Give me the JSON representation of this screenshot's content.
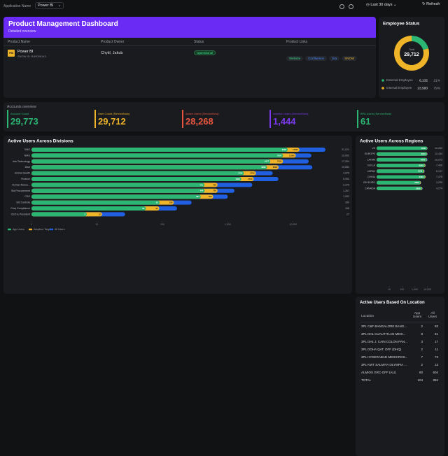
{
  "topbar": {
    "app_label": "Application Name",
    "app_value": "Power BI",
    "range": "Last 30 days",
    "refresh": "Refresh"
  },
  "header": {
    "title": "Product Management Dashboard",
    "subtitle": "Detailed overview"
  },
  "product_table": {
    "columns": [
      "Product Name",
      "Product Owner",
      "Status",
      "Product Links"
    ],
    "rows": [
      {
        "icon": "PBI",
        "name": "Power BI",
        "id": "SNOW ID: BA0006143",
        "owner": "Chytil, Jakub",
        "status": "Operational",
        "links": [
          "Website",
          "Confluence",
          "Jira",
          "SNOW"
        ]
      }
    ]
  },
  "accounts": {
    "title": "Accounts overview",
    "kpis": [
      {
        "label": "Account Count",
        "value": "29,773",
        "color": "#2bb673"
      },
      {
        "label": "User Count (ServiceNow)",
        "value": "29,712",
        "color": "#f0b429"
      },
      {
        "label": "Active Users (ServiceNow)",
        "value": "28,268",
        "color": "#e8553f"
      },
      {
        "label": "Inactive Users (ServiceNow)",
        "value": "1,444",
        "color": "#7c3aed"
      },
      {
        "label": "BPA Users (ServiceNow)",
        "value": "61",
        "color": "#2bb673"
      }
    ]
  },
  "location_table": {
    "title": "Active Users Based On Location",
    "columns": [
      "Location",
      "App Users",
      "All Users"
    ],
    "rows": [
      [
        "3PL C&F BANGALORE BANG...",
        "2",
        "93"
      ],
      [
        "3PL DHL CUAUTITLAN MEXI...",
        "8",
        "81"
      ],
      [
        "3PL DHL J. CAIN COLON PAN...",
        "3",
        "17"
      ],
      [
        "3PL DOHA QAT. OFF (DHQ)",
        "2",
        "11"
      ],
      [
        "3PL HYDERABAD MEDICROS...",
        "7",
        "73"
      ],
      [
        "3PL KWT SALMIYA OLYMPIA ...",
        "2",
        "13"
      ],
      [
        "ALMIOS GRC-OFF (ALI)",
        "80",
        "604"
      ],
      [
        "TOTAL",
        "104",
        "894"
      ]
    ]
  },
  "chart_data": [
    {
      "type": "pie",
      "title": "Employee Status",
      "center_label": "Total",
      "center_value": "29,712",
      "categories": [
        "External Employee",
        "Internal Employee"
      ],
      "values": [
        6132,
        23580
      ],
      "value_labels": [
        "6,132",
        "23,580"
      ],
      "percent_labels": [
        "21%",
        "79%"
      ],
      "colors": [
        "#2bb673",
        "#f0b429"
      ]
    },
    {
      "type": "hbar",
      "title": "Active Users Across Divisions",
      "log_scale": true,
      "categories": [
        "SMG",
        "NMG",
        "Info Technology",
        "Distr",
        "Animal Health",
        "Finance",
        "Human Resou...",
        "Std Procurement",
        "CSO",
        "Std Controls",
        "Corp Compliance",
        "CEO & President"
      ],
      "series": [
        {
          "name": "App Users",
          "color": "#2bb673",
          "values": [
            8268,
            7007,
            4477,
            3988,
            1765,
            1608,
            441,
            444,
            387,
            91,
            56,
            7
          ]
        },
        {
          "name": "Adoption Target",
          "color": "#f0b429",
          "values": [
            12500,
            11000,
            7000,
            6000,
            2700,
            2500,
            700,
            700,
            600,
            150,
            90,
            12
          ]
        },
        {
          "name": "All Users",
          "color": "#1f5fe0",
          "values": [
            31221,
            19003,
            17304,
            19653,
            4876,
            5953,
            2376,
            1267,
            1003,
            280,
            168,
            27
          ],
          "value_labels": [
            "31,221",
            "19,003",
            "17,304",
            "19,653",
            "4,876",
            "5,953",
            "2,376",
            "1,267",
            "1,003",
            "280",
            "168",
            "27"
          ]
        }
      ],
      "xlim": [
        1,
        40000
      ],
      "xticks": [
        1,
        10,
        100,
        {
          "value": 1000,
          "label": "1,000"
        },
        {
          "value": 10000,
          "label": "10,000"
        }
      ]
    },
    {
      "type": "hbar",
      "title": "Active Users Across Regions",
      "log_scale": true,
      "categories": [
        "US",
        "EUROPE",
        "LATAM",
        "EM LA",
        "JAPAN",
        "CHINA",
        "EM EURO",
        "CANADA"
      ],
      "series": [
        {
          "color": "#2bb673",
          "values": [
            9500,
            9100,
            8400,
            6200,
            5100,
            6300,
            2800,
            3600
          ]
        },
        {
          "color": "#f0b429",
          "values": [
            10000,
            9800,
            9200,
            7000,
            5800,
            7100,
            3100,
            4000
          ]
        },
        {
          "color": "#1f5fe0",
          "values": [
            10432,
            10434,
            10273,
            7490,
            6137,
            7478,
            3295,
            4274
          ],
          "value_labels": [
            "10,432",
            "10,434",
            "10,273",
            "7,490",
            "6,137",
            "7,478",
            "3,295",
            "4,274"
          ]
        }
      ],
      "xlim": [
        1,
        20000
      ],
      "xticks": [
        10,
        100,
        {
          "value": 1000,
          "label": "1,000"
        },
        {
          "value": 10000,
          "label": "10,000"
        }
      ]
    }
  ]
}
